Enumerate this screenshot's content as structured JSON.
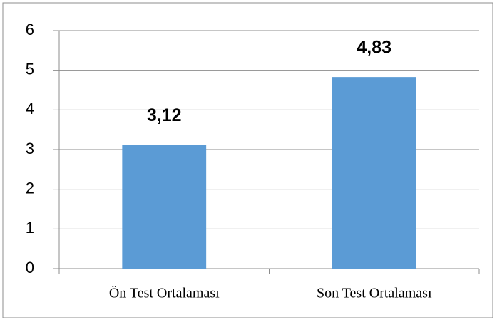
{
  "chart_data": {
    "type": "bar",
    "categories": [
      "Ön Test Ortalaması",
      "Son Test Ortalaması"
    ],
    "values": [
      3.12,
      4.83
    ],
    "value_labels": [
      "3,12",
      "4,83"
    ],
    "color": "#5b9bd5",
    "ylim": [
      0,
      6
    ],
    "yticks": [
      0,
      1,
      2,
      3,
      4,
      5,
      6
    ],
    "grid": true
  }
}
